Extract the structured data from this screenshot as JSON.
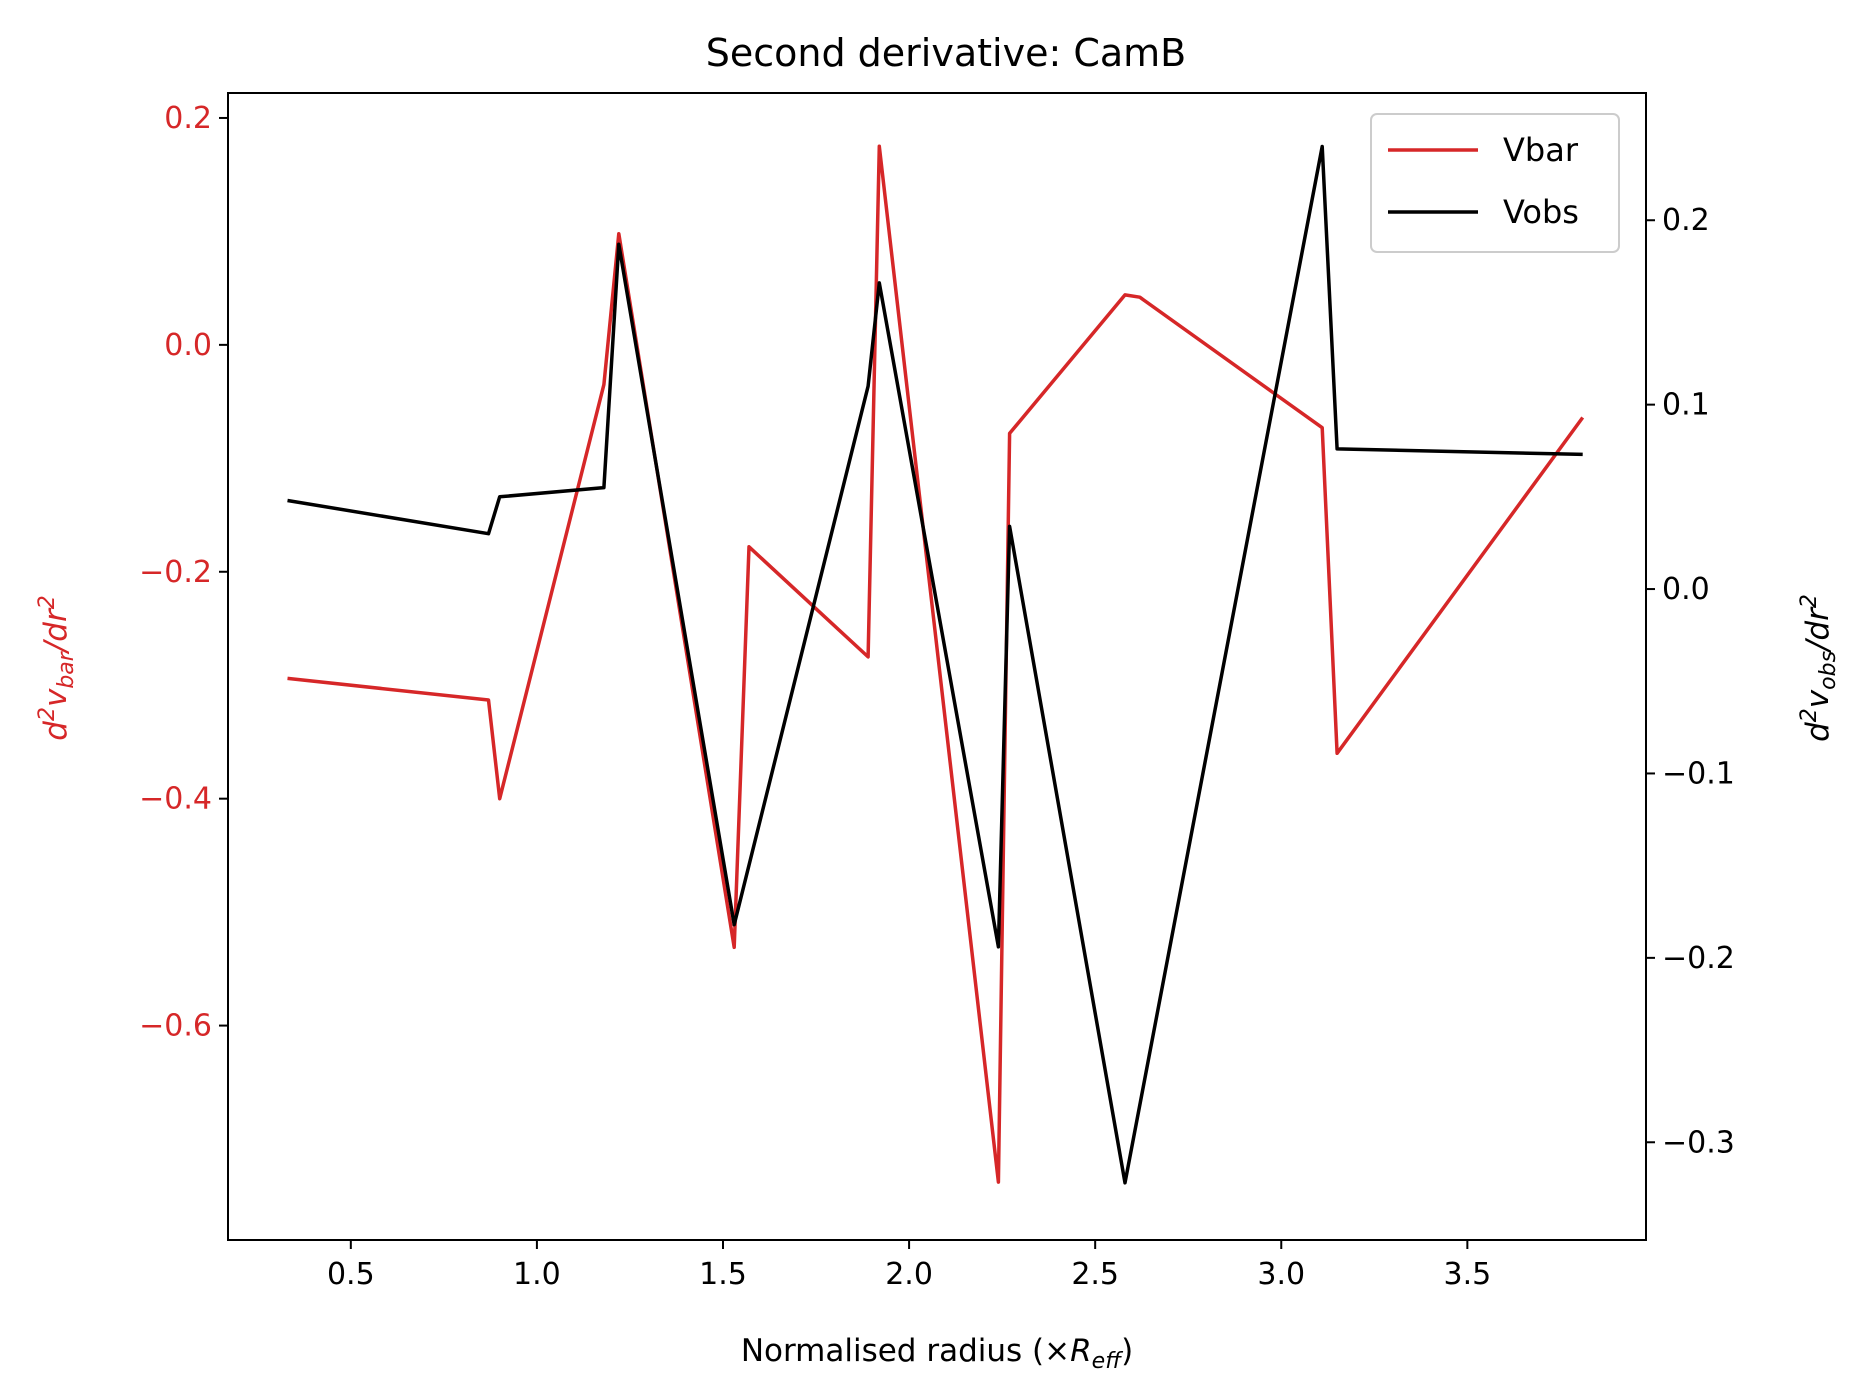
{
  "chart_data": {
    "type": "line",
    "title": "Second derivative: CamB",
    "xlabel": {
      "text": "Normalised radius (×",
      "sym": "R",
      "sub": "eff",
      "suffix": ")"
    },
    "ylabel_left": {
      "pre": "d",
      "sup1": "2",
      "v": "v",
      "sub": "bar",
      "mid": "/dr",
      "sup2": "2"
    },
    "ylabel_right": {
      "pre": "d",
      "sup1": "2",
      "v": "v",
      "sub": "obs",
      "mid": "/dr",
      "sup2": "2"
    },
    "xlim": [
      0.17,
      3.98
    ],
    "ylim_left": [
      -0.789,
      0.222
    ],
    "ylim_right": [
      -0.353,
      0.269
    ],
    "x_ticks": [
      {
        "value": 0.5,
        "label": "0.5"
      },
      {
        "value": 1.0,
        "label": "1.0"
      },
      {
        "value": 1.5,
        "label": "1.5"
      },
      {
        "value": 2.0,
        "label": "2.0"
      },
      {
        "value": 2.5,
        "label": "2.5"
      },
      {
        "value": 3.0,
        "label": "3.0"
      },
      {
        "value": 3.5,
        "label": "3.5"
      }
    ],
    "y_ticks_left": [
      {
        "value": 0.2,
        "label": "0.2"
      },
      {
        "value": 0.0,
        "label": "0.0"
      },
      {
        "value": -0.2,
        "label": "−0.2"
      },
      {
        "value": -0.4,
        "label": "−0.4"
      },
      {
        "value": -0.6,
        "label": "−0.6"
      }
    ],
    "y_ticks_right": [
      {
        "value": 0.2,
        "label": "0.2"
      },
      {
        "value": 0.1,
        "label": "0.1"
      },
      {
        "value": 0.0,
        "label": "0.0"
      },
      {
        "value": -0.1,
        "label": "−0.1"
      },
      {
        "value": -0.2,
        "label": "−0.2"
      },
      {
        "value": -0.3,
        "label": "−0.3"
      }
    ],
    "grid": false,
    "legend_position": "top-right",
    "series": [
      {
        "name": "Vbar",
        "axis": "left",
        "color": "#d62728",
        "x": [
          0.33,
          0.87,
          0.9,
          1.18,
          1.22,
          1.53,
          1.57,
          1.89,
          1.92,
          2.24,
          2.27,
          2.58,
          2.62,
          3.11,
          3.15,
          3.81
        ],
        "y": [
          -0.294,
          -0.313,
          -0.4,
          -0.035,
          0.098,
          -0.531,
          -0.178,
          -0.275,
          0.175,
          -0.738,
          -0.078,
          0.044,
          0.042,
          -0.073,
          -0.36,
          -0.064
        ]
      },
      {
        "name": "Vobs",
        "axis": "right",
        "color": "#000000",
        "x": [
          0.33,
          0.87,
          0.9,
          1.18,
          1.22,
          1.53,
          1.89,
          1.92,
          2.24,
          2.27,
          2.58,
          3.11,
          3.15,
          3.81
        ],
        "y": [
          0.048,
          0.03,
          0.05,
          0.055,
          0.187,
          -0.182,
          0.11,
          0.166,
          -0.194,
          0.034,
          -0.322,
          0.24,
          0.076,
          0.073
        ]
      }
    ]
  }
}
